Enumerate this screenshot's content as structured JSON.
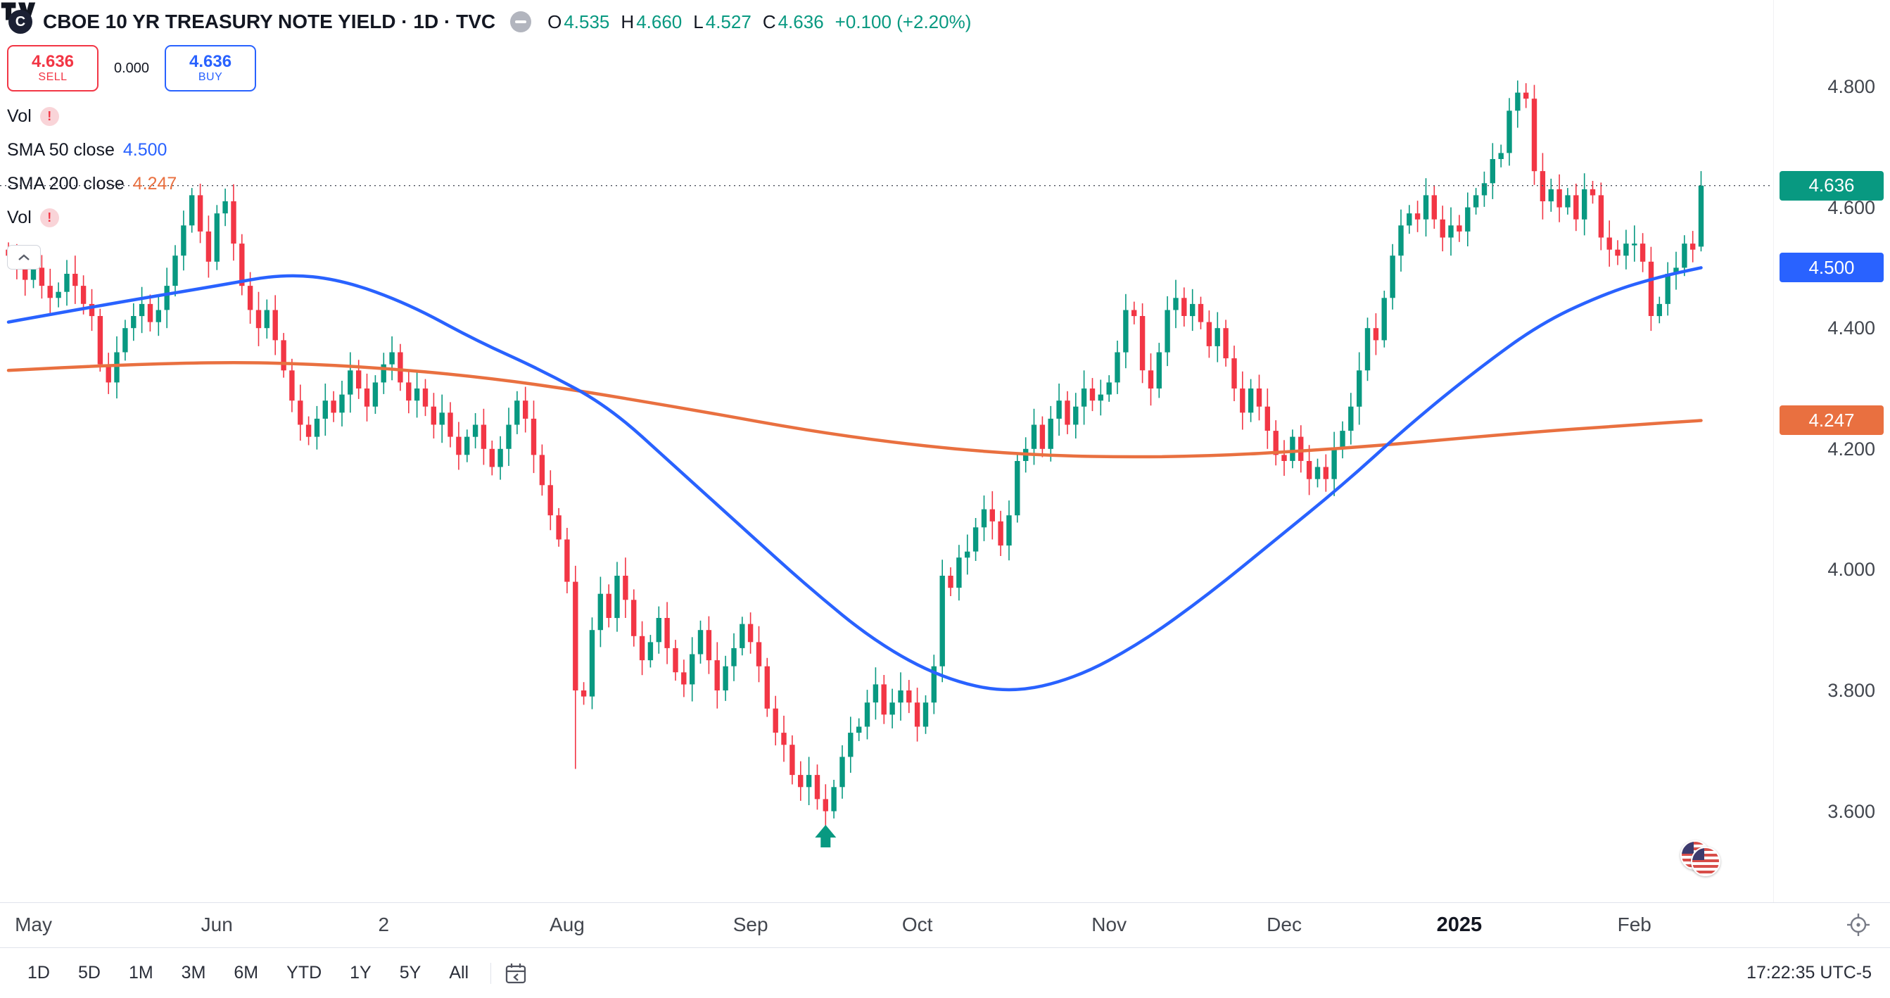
{
  "colors": {
    "up": "#089981",
    "down": "#F23645",
    "sma50": "#2962FF",
    "sma200": "#E97040",
    "badge_last": "#089981",
    "text_dark": "#131722",
    "axis_text": "#42464E"
  },
  "header": {
    "symbol_logo_letter": "C",
    "title": "CBOE 10 YR TREASURY NOTE YIELD · 1D · TVC",
    "ohlc": {
      "o_label": "O",
      "o": "4.535",
      "h_label": "H",
      "h": "4.660",
      "l_label": "L",
      "l": "4.527",
      "c_label": "C",
      "c": "4.636",
      "change": "+0.100 (+2.20%)"
    }
  },
  "trade_panel": {
    "sell_price": "4.636",
    "sell_label": "SELL",
    "spread": "0.000",
    "buy_price": "4.636",
    "buy_label": "BUY"
  },
  "legend": {
    "vol1": {
      "label": "Vol",
      "warning": "!"
    },
    "sma50": {
      "label": "SMA 50 close",
      "value": "4.500"
    },
    "sma200": {
      "label": "SMA 200 close",
      "value": "4.247"
    },
    "vol2": {
      "label": "Vol",
      "warning": "!"
    }
  },
  "price_scale": {
    "ticks": [
      "4.800",
      "4.600",
      "4.400",
      "4.200",
      "4.000",
      "3.800",
      "3.600"
    ],
    "badges": [
      {
        "label": "4.636",
        "price": 4.636,
        "color": "#089981"
      },
      {
        "label": "4.500",
        "price": 4.5,
        "color": "#2962FF"
      },
      {
        "label": "4.247",
        "price": 4.247,
        "color": "#E97040"
      }
    ]
  },
  "toolbar": {
    "ranges": [
      "1D",
      "5D",
      "1M",
      "3M",
      "6M",
      "YTD",
      "1Y",
      "5Y",
      "All"
    ],
    "clock": "17:22:35 UTC-5"
  },
  "chart_data": {
    "type": "candlestick",
    "title": "CBOE 10 YR TREASURY NOTE YIELD",
    "interval": "1D",
    "exchange": "TVC",
    "current_ohlc": {
      "open": 4.535,
      "high": 4.66,
      "low": 4.527,
      "close": 4.636,
      "change": 0.1,
      "change_pct": 2.2
    },
    "last_price": 4.636,
    "y_axis": {
      "ticks": [
        4.8,
        4.6,
        4.4,
        4.2,
        4.0,
        3.8,
        3.6
      ],
      "visible_range": [
        3.45,
        4.94
      ],
      "grid": false
    },
    "x_labels": [
      {
        "text": "May",
        "i": 3
      },
      {
        "text": "Jun",
        "i": 25
      },
      {
        "text": "2",
        "i": 45
      },
      {
        "text": "Aug",
        "i": 67
      },
      {
        "text": "Sep",
        "i": 89
      },
      {
        "text": "Oct",
        "i": 109
      },
      {
        "text": "Nov",
        "i": 132
      },
      {
        "text": "Dec",
        "i": 153
      },
      {
        "text": "2025",
        "i": 174,
        "bold": true
      },
      {
        "text": "Feb",
        "i": 195
      }
    ],
    "closes": [
      4.52,
      4.5,
      4.48,
      4.5,
      4.47,
      4.45,
      4.46,
      4.49,
      4.47,
      4.44,
      4.42,
      4.34,
      4.31,
      4.36,
      4.4,
      4.42,
      4.44,
      4.41,
      4.43,
      4.47,
      4.52,
      4.57,
      4.62,
      4.56,
      4.51,
      4.59,
      4.61,
      4.54,
      4.47,
      4.43,
      4.4,
      4.43,
      4.38,
      4.33,
      4.28,
      4.24,
      4.22,
      4.25,
      4.28,
      4.26,
      4.29,
      4.33,
      4.3,
      4.27,
      4.31,
      4.34,
      4.36,
      4.31,
      4.28,
      4.3,
      4.27,
      4.24,
      4.26,
      4.22,
      4.19,
      4.22,
      4.24,
      4.2,
      4.17,
      4.2,
      4.24,
      4.28,
      4.25,
      4.19,
      4.14,
      4.09,
      4.05,
      3.98,
      3.8,
      3.79,
      3.9,
      3.96,
      3.92,
      3.99,
      3.95,
      3.89,
      3.85,
      3.88,
      3.92,
      3.87,
      3.83,
      3.81,
      3.86,
      3.9,
      3.85,
      3.8,
      3.84,
      3.87,
      3.91,
      3.88,
      3.84,
      3.77,
      3.73,
      3.71,
      3.66,
      3.64,
      3.66,
      3.62,
      3.6,
      3.64,
      3.69,
      3.73,
      3.74,
      3.78,
      3.81,
      3.76,
      3.78,
      3.8,
      3.78,
      3.74,
      3.78,
      3.84,
      3.99,
      3.97,
      4.02,
      4.03,
      4.07,
      4.1,
      4.08,
      4.04,
      4.09,
      4.18,
      4.2,
      4.24,
      4.2,
      4.25,
      4.28,
      4.24,
      4.27,
      4.3,
      4.28,
      4.29,
      4.31,
      4.36,
      4.43,
      4.42,
      4.33,
      4.3,
      4.36,
      4.43,
      4.45,
      4.42,
      4.44,
      4.41,
      4.37,
      4.4,
      4.35,
      4.3,
      4.26,
      4.3,
      4.27,
      4.23,
      4.19,
      4.18,
      4.22,
      4.18,
      4.15,
      4.17,
      4.15,
      4.2,
      4.23,
      4.27,
      4.33,
      4.4,
      4.38,
      4.45,
      4.52,
      4.57,
      4.59,
      4.58,
      4.62,
      4.58,
      4.55,
      4.57,
      4.56,
      4.6,
      4.62,
      4.64,
      4.68,
      4.69,
      4.76,
      4.79,
      4.78,
      4.66,
      4.61,
      4.63,
      4.6,
      4.62,
      4.58,
      4.63,
      4.62,
      4.55,
      4.53,
      4.52,
      4.54,
      4.54,
      4.51,
      4.42,
      4.44,
      4.49,
      4.5,
      4.54,
      4.53,
      4.636
    ],
    "special_candles": [
      {
        "i": 68,
        "l": 3.67
      },
      {
        "i": 181,
        "h": 4.81
      },
      {
        "i": 203,
        "o": 4.535,
        "h": 4.66,
        "l": 4.527,
        "c": 4.636
      }
    ],
    "series": [
      {
        "name": "SMA 50",
        "current": 4.5,
        "color": "#2962FF",
        "anchors": [
          [
            0,
            4.41
          ],
          [
            12,
            4.44
          ],
          [
            25,
            4.47
          ],
          [
            33,
            4.49
          ],
          [
            40,
            4.48
          ],
          [
            48,
            4.44
          ],
          [
            56,
            4.38
          ],
          [
            64,
            4.33
          ],
          [
            72,
            4.27
          ],
          [
            80,
            4.17
          ],
          [
            88,
            4.07
          ],
          [
            96,
            3.97
          ],
          [
            104,
            3.88
          ],
          [
            112,
            3.82
          ],
          [
            120,
            3.795
          ],
          [
            128,
            3.82
          ],
          [
            136,
            3.88
          ],
          [
            144,
            3.96
          ],
          [
            152,
            4.05
          ],
          [
            160,
            4.14
          ],
          [
            168,
            4.24
          ],
          [
            176,
            4.33
          ],
          [
            184,
            4.41
          ],
          [
            192,
            4.46
          ],
          [
            198,
            4.485
          ],
          [
            203,
            4.5
          ]
        ]
      },
      {
        "name": "SMA 200",
        "current": 4.247,
        "color": "#E97040",
        "anchors": [
          [
            0,
            4.33
          ],
          [
            20,
            4.345
          ],
          [
            40,
            4.34
          ],
          [
            60,
            4.315
          ],
          [
            80,
            4.27
          ],
          [
            100,
            4.22
          ],
          [
            120,
            4.19
          ],
          [
            140,
            4.185
          ],
          [
            160,
            4.2
          ],
          [
            180,
            4.225
          ],
          [
            195,
            4.24
          ],
          [
            203,
            4.247
          ]
        ]
      }
    ],
    "marker": {
      "type": "arrow-up",
      "i": 98,
      "price": 3.6,
      "color": "#089981"
    }
  }
}
